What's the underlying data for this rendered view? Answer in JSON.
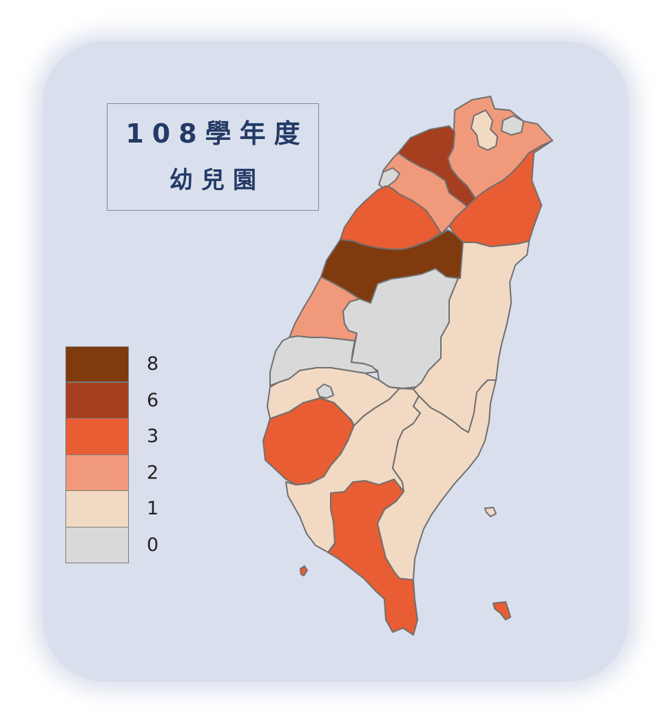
{
  "title": {
    "line1": "108學年度",
    "line2": "幼兒園"
  },
  "legend": [
    {
      "label": "8",
      "color": "#7f3a0e"
    },
    {
      "label": "6",
      "color": "#a63f1f"
    },
    {
      "label": "3",
      "color": "#e85d33"
    },
    {
      "label": "2",
      "color": "#f09a7b"
    },
    {
      "label": "1",
      "color": "#f1d9c4"
    },
    {
      "label": "0",
      "color": "#d9d9d9"
    }
  ],
  "regions": [
    {
      "name": "新北市",
      "value": 2
    },
    {
      "name": "臺北市",
      "value": 1
    },
    {
      "name": "基隆市",
      "value": 0
    },
    {
      "name": "桃園市",
      "value": 6
    },
    {
      "name": "宜蘭縣",
      "value": 3
    },
    {
      "name": "新竹縣",
      "value": 2
    },
    {
      "name": "新竹市",
      "value": 0
    },
    {
      "name": "苗栗縣",
      "value": 3
    },
    {
      "name": "臺中市",
      "value": 8
    },
    {
      "name": "彰化縣",
      "value": 2
    },
    {
      "name": "南投縣",
      "value": 0
    },
    {
      "name": "雲林縣",
      "value": 0
    },
    {
      "name": "嘉義縣",
      "value": 1
    },
    {
      "name": "嘉義市",
      "value": 0
    },
    {
      "name": "臺南市",
      "value": 3
    },
    {
      "name": "高雄市",
      "value": 1
    },
    {
      "name": "屏東縣",
      "value": 3
    },
    {
      "name": "花蓮縣",
      "value": 1
    },
    {
      "name": "臺東縣",
      "value": 1
    },
    {
      "name": "澎湖縣",
      "value": 3
    },
    {
      "name": "綠島",
      "value": 1
    },
    {
      "name": "蘭嶼",
      "value": 3
    }
  ]
}
